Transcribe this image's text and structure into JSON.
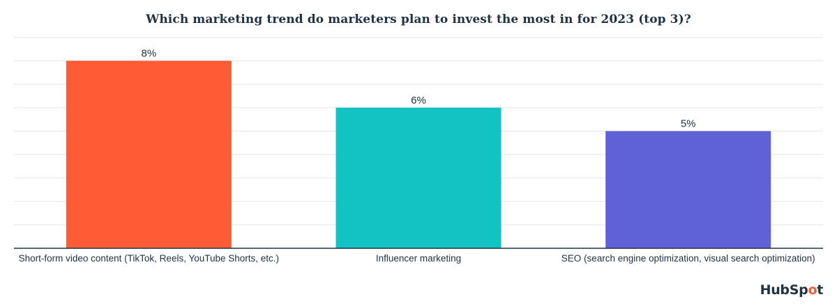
{
  "chart_data": {
    "type": "bar",
    "title": "Which marketing trend do marketers plan to invest the most in for 2023 (top 3)?",
    "categories": [
      "Short-form video content (TikTok, Reels, YouTube Shorts, etc.)",
      "Influencer marketing",
      "SEO (search engine optimization, visual search optimization)"
    ],
    "values": [
      8,
      6,
      5
    ],
    "value_labels": [
      "8%",
      "6%",
      "5%"
    ],
    "colors": [
      "#ff5c35",
      "#13c2c2",
      "#5e62d6"
    ],
    "ylim": [
      0,
      9
    ],
    "grid": true,
    "y_axis_visible": false,
    "xlabel": "",
    "ylabel": ""
  },
  "branding": {
    "logo_text_before": "HubSp",
    "logo_text_mark": "o",
    "logo_text_after": "t"
  }
}
